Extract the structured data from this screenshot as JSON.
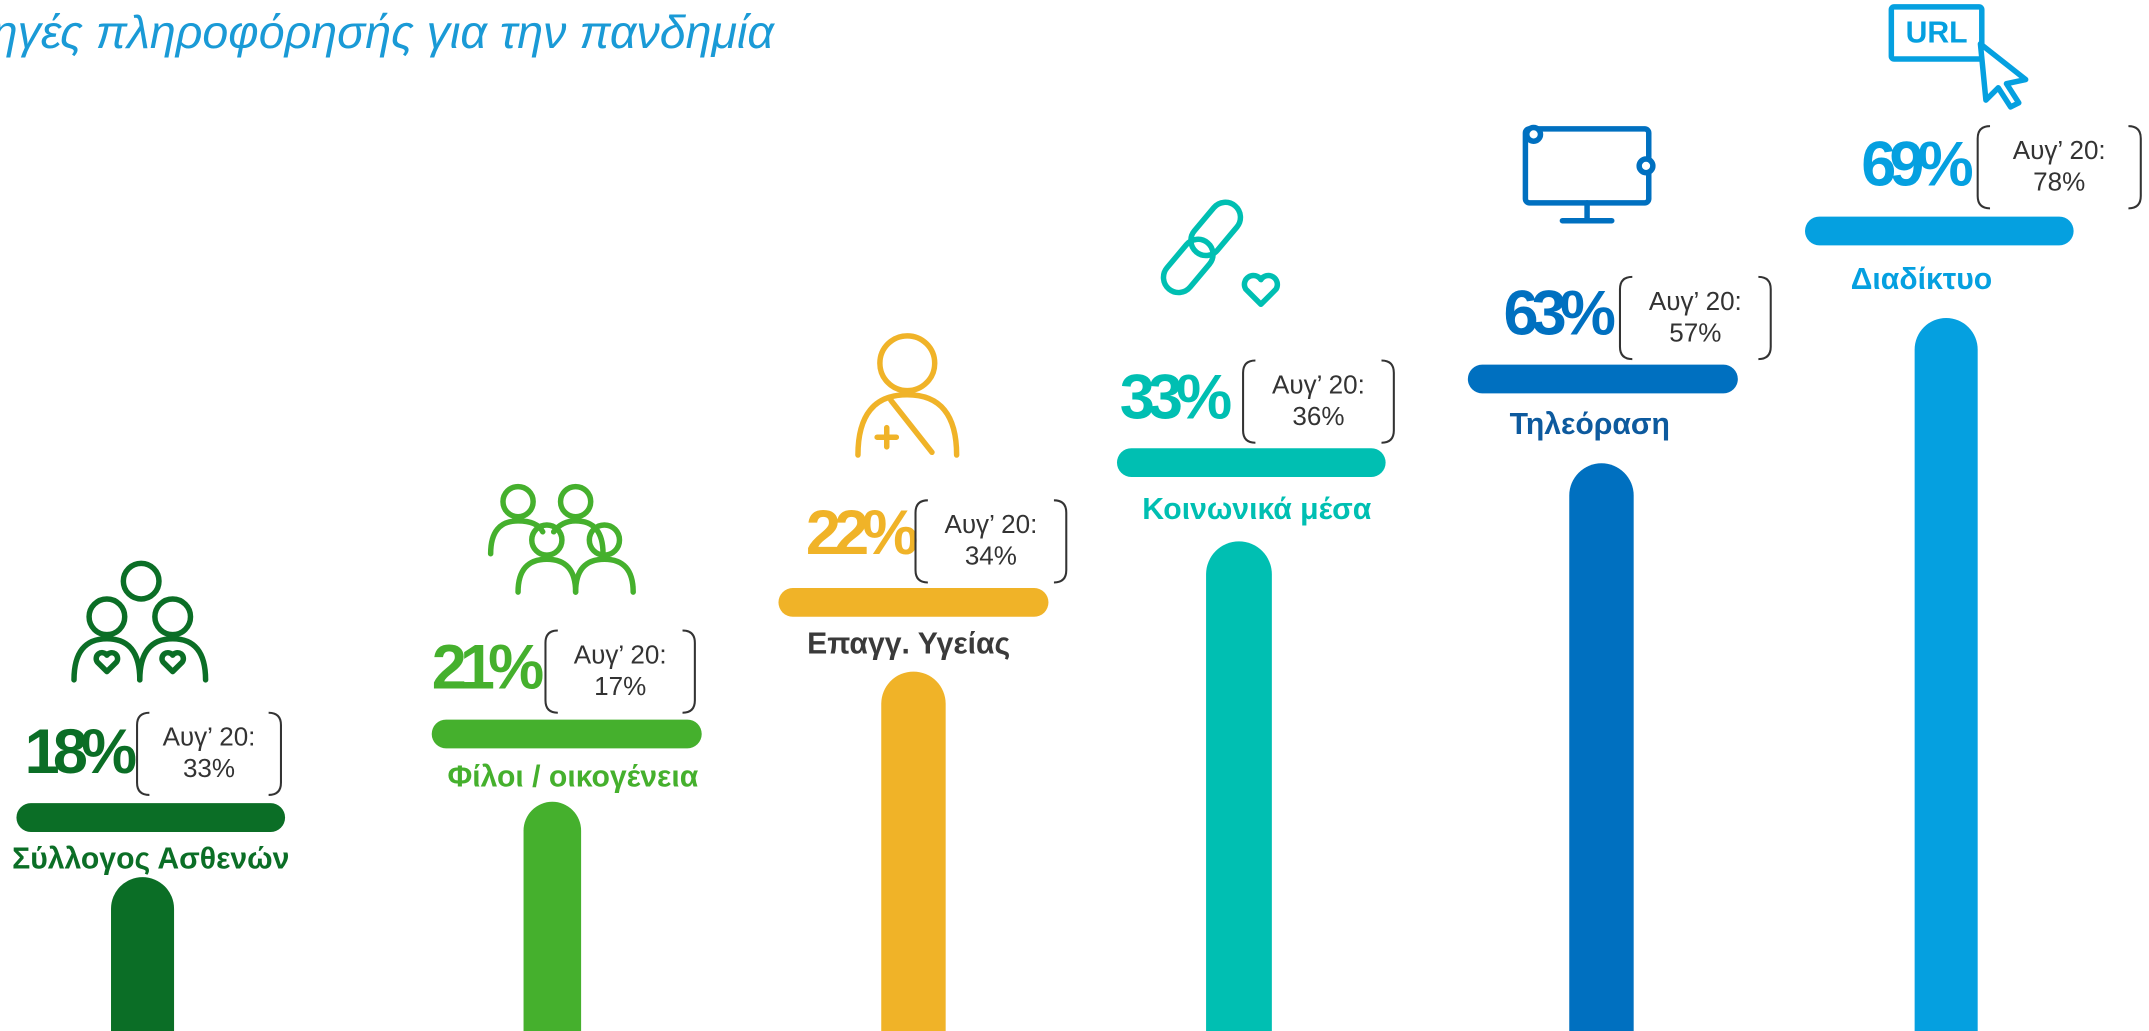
{
  "title": "ηγές πληροφόρησής για την πανδημία",
  "items": [
    {
      "label": "Σύλλογος Ασθενών",
      "value": "18%",
      "previous_label": "Αυγ’ 20:",
      "previous_value": "33%",
      "color": "#0b6e26",
      "label_color": "#0b6e26"
    },
    {
      "label": "Φίλοι / οικογένεια",
      "value": "21%",
      "previous_label": "Αυγ’ 20:",
      "previous_value": "17%",
      "color": "#45b02d",
      "label_color": "#45b02d"
    },
    {
      "label": "Επαγγ. Υγείας",
      "value": "22%",
      "previous_label": "Αυγ’ 20:",
      "previous_value": "34%",
      "color": "#f0b328",
      "label_color": "#3a3a3a"
    },
    {
      "label": "Κοινωνικά μέσα",
      "value": "33%",
      "previous_label": "Αυγ’ 20:",
      "previous_value": "36%",
      "color": "#00bfb2",
      "label_color": "#00bfb2"
    },
    {
      "label": "Τηλεόραση",
      "value": "63%",
      "previous_label": "Αυγ’ 20:",
      "previous_value": "57%",
      "color": "#0070c0",
      "label_color": "#0d5a9e"
    },
    {
      "label": "Διαδίκτυο",
      "value": "69%",
      "previous_label": "Αυγ’ 20:",
      "previous_value": "78%",
      "color": "#05a0e0",
      "label_color": "#05a0e0"
    }
  ]
}
